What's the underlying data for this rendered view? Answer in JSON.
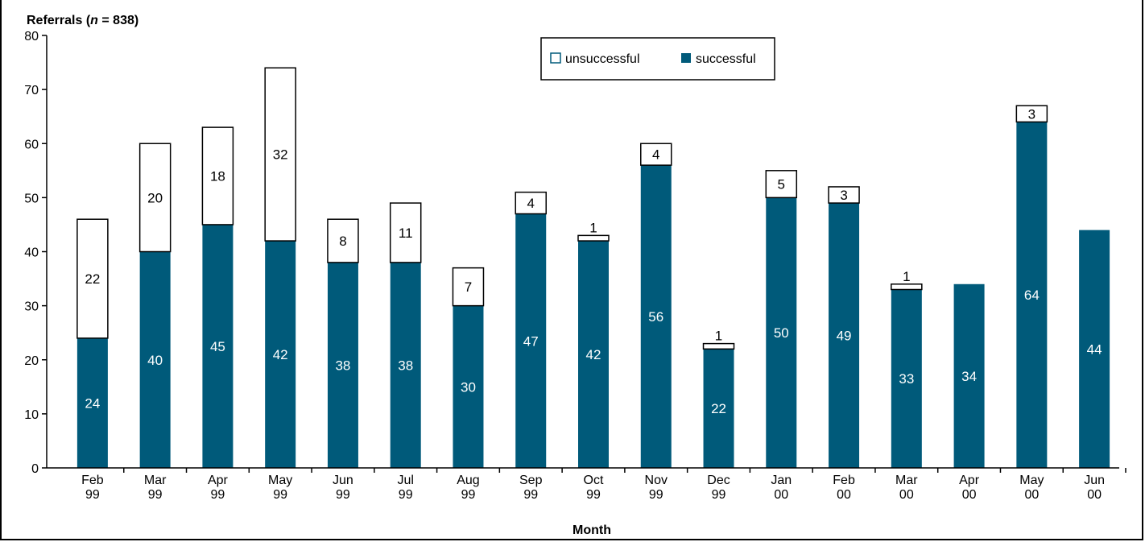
{
  "chart_data": {
    "type": "bar",
    "stacked": true,
    "ylabel": "Referrals (n = 838)",
    "ylabel_parts": [
      "Referrals (",
      "n",
      " = 838)"
    ],
    "xlabel": "Month",
    "ylim": [
      0,
      80
    ],
    "yticks": [
      0,
      10,
      20,
      30,
      40,
      50,
      60,
      70,
      80
    ],
    "categories": [
      [
        "Feb",
        "99"
      ],
      [
        "Mar",
        "99"
      ],
      [
        "Apr",
        "99"
      ],
      [
        "May",
        "99"
      ],
      [
        "Jun",
        "99"
      ],
      [
        "Jul",
        "99"
      ],
      [
        "Aug",
        "99"
      ],
      [
        "Sep",
        "99"
      ],
      [
        "Oct",
        "99"
      ],
      [
        "Nov",
        "99"
      ],
      [
        "Dec",
        "99"
      ],
      [
        "Jan",
        "00"
      ],
      [
        "Feb",
        "00"
      ],
      [
        "Mar",
        "00"
      ],
      [
        "Apr",
        "00"
      ],
      [
        "May",
        "00"
      ],
      [
        "Jun",
        "00"
      ]
    ],
    "series": [
      {
        "name": "successful",
        "color": "#005A7A",
        "values": [
          24,
          40,
          45,
          42,
          38,
          38,
          30,
          47,
          42,
          56,
          22,
          50,
          49,
          33,
          34,
          64,
          44
        ],
        "labels": [
          "24",
          "40",
          "45",
          "42",
          "38",
          "38",
          "30",
          "47",
          "42",
          "56",
          "22",
          "50",
          "49",
          "33",
          "34",
          "64",
          "44"
        ]
      },
      {
        "name": "unsuccessful",
        "color": "#ffffff",
        "values": [
          22,
          20,
          18,
          32,
          8,
          11,
          7,
          4,
          1,
          4,
          1,
          5,
          3,
          1,
          0,
          3,
          0
        ],
        "labels": [
          "22",
          "20",
          "18",
          "32",
          "8",
          "11",
          "7",
          "4",
          "1",
          "4",
          "1",
          "5",
          "3",
          "1",
          "",
          "3",
          ""
        ]
      }
    ],
    "legend": {
      "position": "top-center",
      "items": [
        "unsuccessful",
        "successful"
      ]
    },
    "grid": false
  }
}
